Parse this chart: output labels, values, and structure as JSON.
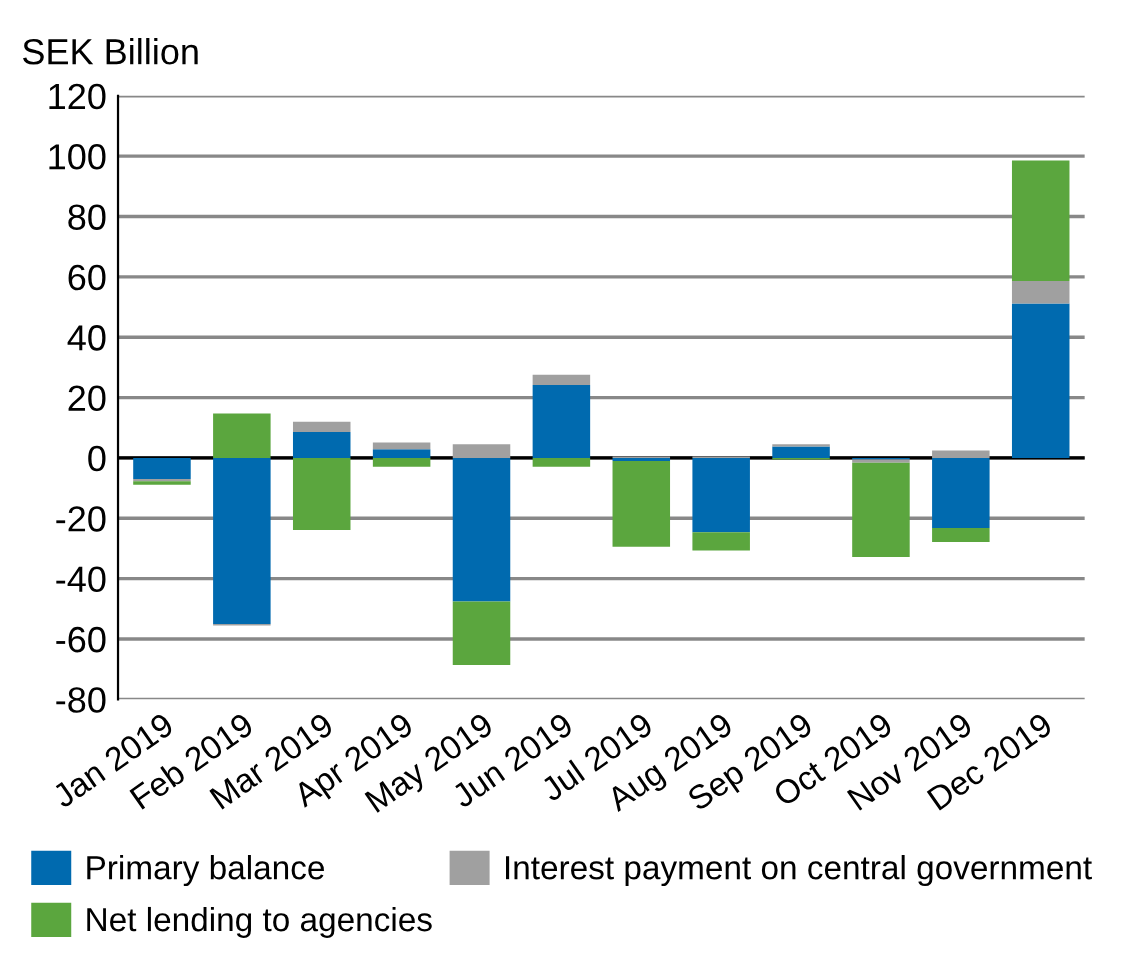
{
  "chart_data": {
    "type": "bar",
    "stacked": true,
    "ylabel": "SEK Billion",
    "categories": [
      "Jan 2019",
      "Feb 2019",
      "Mar 2019",
      "Apr 2019",
      "May 2019",
      "Jun 2019",
      "Jul 2019",
      "Aug 2019",
      "Sep 2019",
      "Oct 2019",
      "Nov 2019",
      "Dec 2019"
    ],
    "series": [
      {
        "name": "Primary balance",
        "color": "#006aaf",
        "values": [
          -7,
          -55,
          8.6,
          2.9,
          -47.6,
          24.2,
          -1,
          -24.6,
          3.8,
          -0.5,
          -23.2,
          51.2
        ]
      },
      {
        "name": "Interest payment on central government",
        "color": "#a0a0a0",
        "values": [
          -0.7,
          -0.5,
          3.4,
          2.2,
          4.5,
          3.4,
          0.5,
          0.5,
          0.7,
          -1.1,
          2.5,
          7.4
        ]
      },
      {
        "name": "Net lending to agencies",
        "color": "#5ba63e",
        "values": [
          -1.2,
          14.7,
          -23.9,
          -2.9,
          -21,
          -2.9,
          -28.4,
          -6.1,
          -0.5,
          -31.2,
          -4.7,
          40
        ]
      }
    ],
    "ylim": [
      -80,
      120
    ],
    "yticks": [
      -80,
      -60,
      -40,
      -20,
      0,
      20,
      40,
      60,
      80,
      100,
      120
    ],
    "grid": "y",
    "legend": "bottom"
  }
}
